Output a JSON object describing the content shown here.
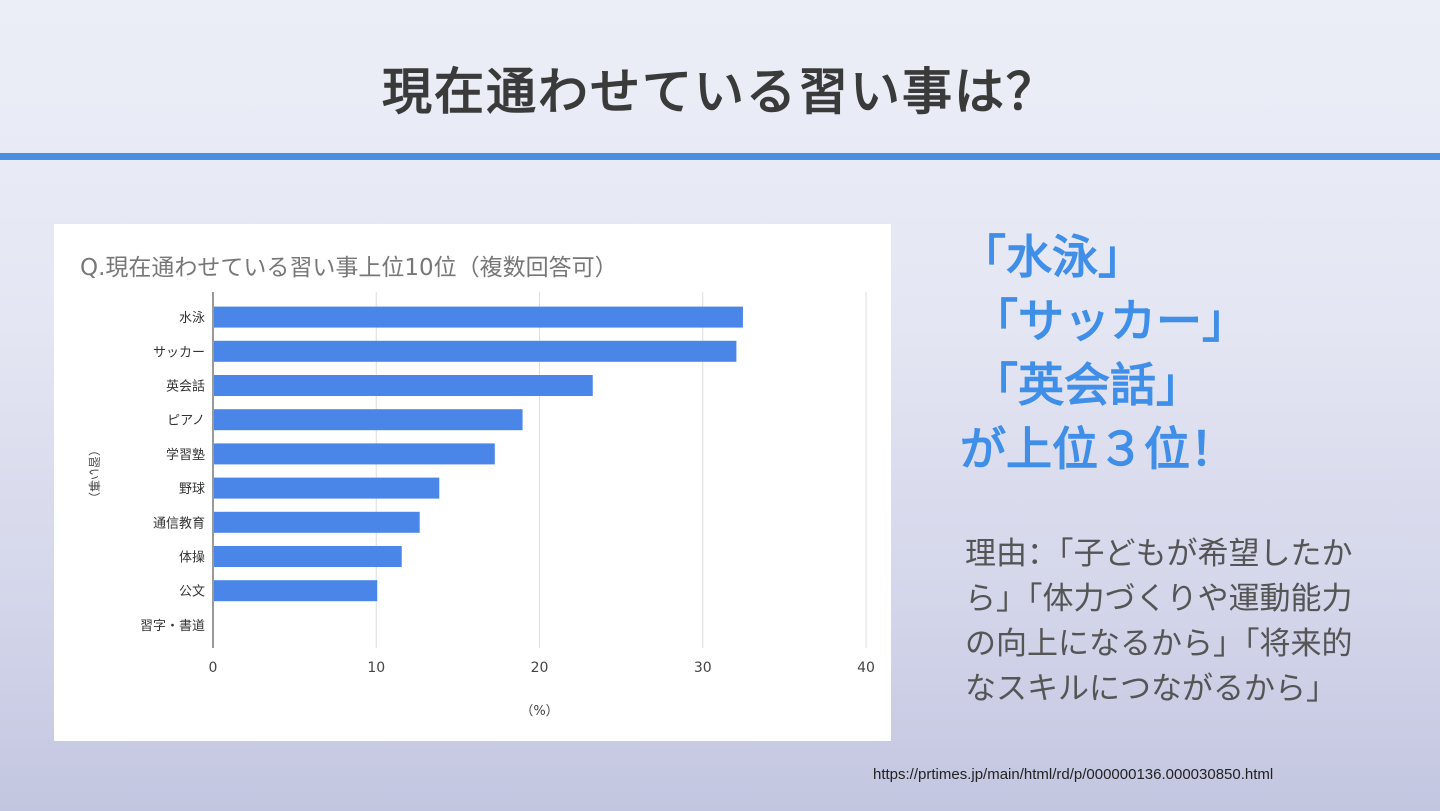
{
  "slide": {
    "title": "現在通わせている習い事は？",
    "headline": [
      "「水泳」",
      "「サッカー」",
      "「英会話」",
      "が上位３位！"
    ],
    "reason": "理由：「子どもが希望したから」「体力づくりや運動能力の向上になるから」「将来的なスキルにつながるから」",
    "source_url": "https://prtimes.jp/main/html/rd/p/000000136.000030850.html",
    "accent": "#3f8ee8",
    "bar_color": "#4a86e8"
  },
  "chart_data": {
    "type": "bar",
    "orientation": "horizontal",
    "title": "Q.現在通わせている習い事上位10位（複数回答可）",
    "categories": [
      "水泳",
      "サッカー",
      "英会話",
      "ピアノ",
      "学習塾",
      "野球",
      "通信教育",
      "体操",
      "公文",
      "習字・書道"
    ],
    "values": [
      32.4,
      32.0,
      23.2,
      18.9,
      17.2,
      13.8,
      12.6,
      11.5,
      10.0,
      0
    ],
    "xlabel": "（%）",
    "ylabel": "（習い事）",
    "xlim": [
      0,
      40
    ],
    "xticks": [
      "0",
      "10",
      "20",
      "30",
      "40"
    ],
    "grid": true
  }
}
